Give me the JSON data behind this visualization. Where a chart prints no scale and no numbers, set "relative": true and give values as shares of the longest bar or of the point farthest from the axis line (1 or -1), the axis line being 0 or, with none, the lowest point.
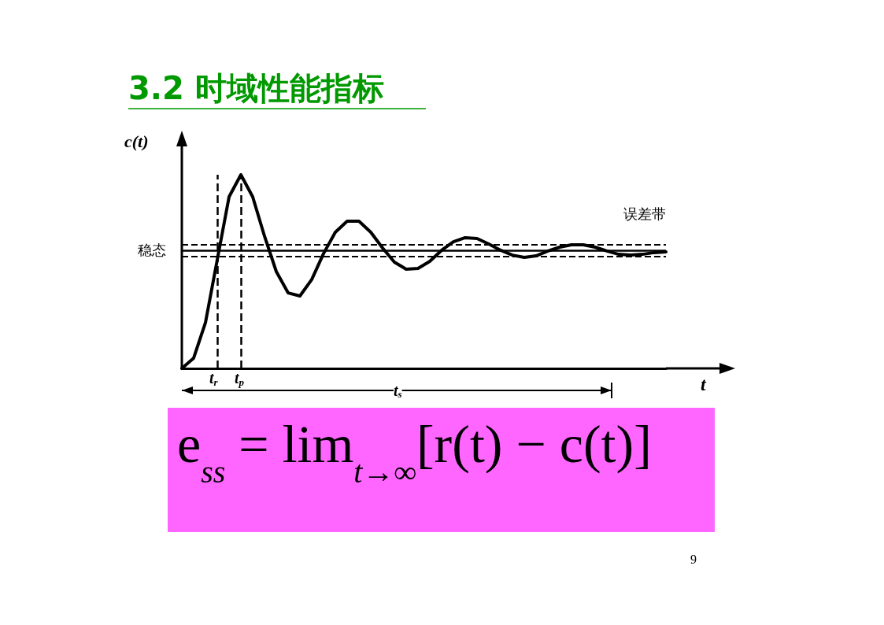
{
  "chart_data": {
    "type": "line",
    "title": "3.2 时域性能指标",
    "ylabel": "c(t)",
    "xlabel": "t",
    "relative": true,
    "color": "#000000",
    "marker": "none",
    "line_style": "solid",
    "grid": false,
    "categories": [
      null,
      null,
      null,
      null,
      null,
      null,
      null,
      null,
      null,
      null,
      null,
      null,
      null,
      null,
      null,
      null,
      null,
      null,
      null,
      null,
      null,
      null,
      null,
      null,
      null,
      null,
      null,
      null,
      null,
      null,
      null,
      null,
      null,
      null,
      null,
      null,
      null,
      null,
      null,
      null,
      null,
      null
    ],
    "values": [
      0,
      0.053,
      0.236,
      0.561,
      0.886,
      1,
      0.886,
      0.683,
      0.5,
      0.39,
      0.374,
      0.459,
      0.593,
      0.703,
      0.76,
      0.76,
      0.703,
      0.622,
      0.549,
      0.512,
      0.516,
      0.553,
      0.61,
      0.654,
      0.675,
      0.671,
      0.642,
      0.61,
      0.585,
      0.573,
      0.581,
      0.606,
      0.626,
      0.638,
      0.638,
      0.626,
      0.606,
      0.589,
      0.585,
      0.589,
      0.598,
      0.602
    ],
    "ref_lines": [
      {
        "axis": "y",
        "value": 0.61,
        "label": "稳态",
        "line_style": "solid",
        "color": "#000000"
      },
      {
        "axis": "y",
        "value": 0.642,
        "label": "误差带",
        "line_style": "dashed",
        "color": "#000000"
      },
      {
        "axis": "y",
        "value": 0.577,
        "line_style": "dashed",
        "color": "#000000"
      }
    ],
    "annotations": [
      "t$_{s}$",
      "e$_{ss}$ = lim$_{t→∞}$[r(t) − c(t)]",
      "9",
      "t$_{r}$",
      "t$_{p}$"
    ]
  }
}
